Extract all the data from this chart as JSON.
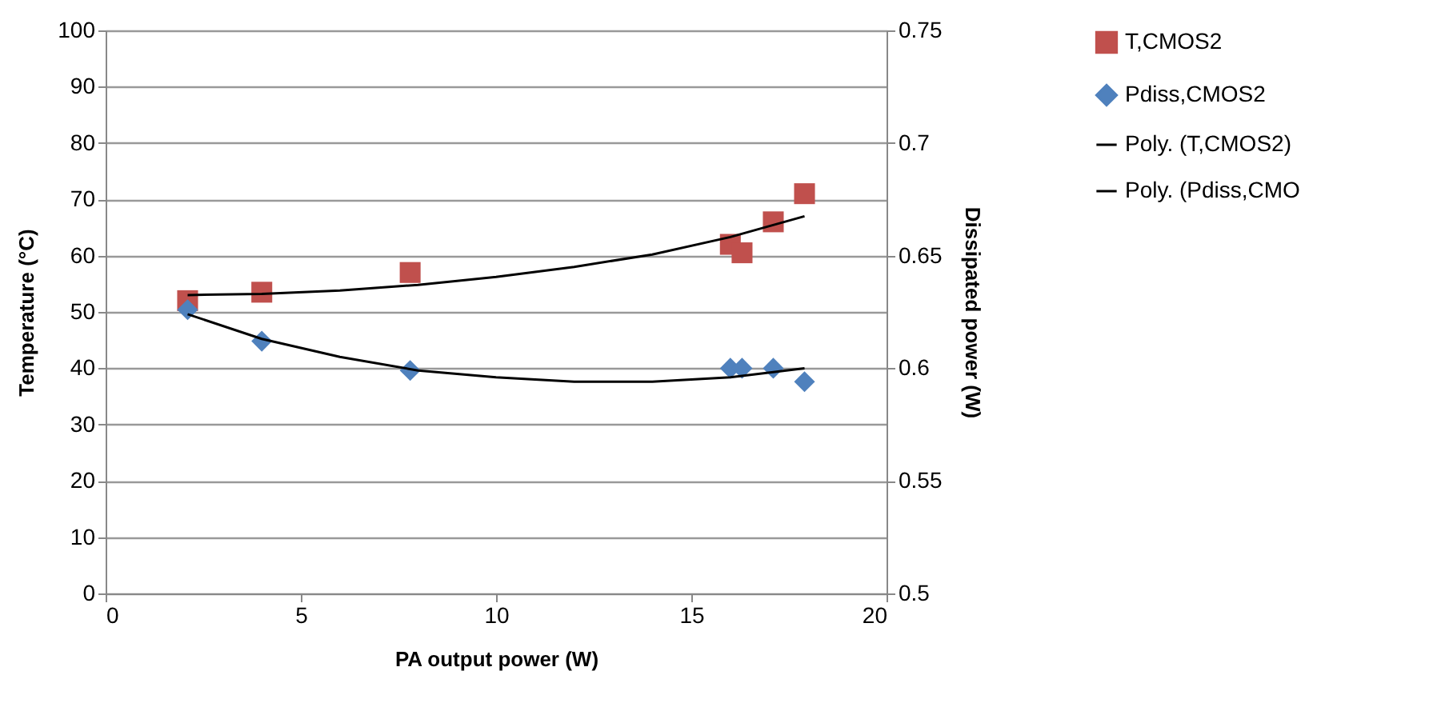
{
  "chart_data": {
    "type": "scatter",
    "xlabel": "PA output power (W)",
    "ylabel": "Temperature (°C)",
    "y2label": "Dissipated power (W)",
    "xlim": [
      0,
      20
    ],
    "xticks": [
      0,
      5,
      10,
      15,
      20
    ],
    "ylim": [
      0,
      100
    ],
    "yticks": [
      0,
      10,
      20,
      30,
      40,
      50,
      60,
      70,
      80,
      90,
      100
    ],
    "y2lim": [
      0.5,
      0.75
    ],
    "y2ticks": [
      0.5,
      0.55,
      0.6,
      0.65,
      0.7,
      0.75
    ],
    "grid": "y",
    "legend": "right",
    "series": [
      {
        "name": "T,CMOS2",
        "marker": "square",
        "color": "#c0504d",
        "x": [
          2.1,
          4,
          7.8,
          16,
          16.3,
          17.1,
          17.9
        ],
        "values": [
          52,
          53.5,
          57,
          62,
          60.5,
          66,
          71
        ]
      },
      {
        "name": "Pdiss,CMOS2",
        "marker": "diamond",
        "axis": "y2",
        "color": "#4f81bd",
        "x": [
          2.1,
          4,
          7.8,
          16,
          16.3,
          17.1,
          17.9
        ],
        "values": [
          0.626,
          0.612,
          0.599,
          0.6,
          0.6,
          0.6,
          0.594
        ]
      },
      {
        "name": "Poly. (T,CMOS2)",
        "type": "line",
        "line_style": "solid",
        "color": "#000000",
        "x": [
          2.1,
          4,
          6,
          8,
          10,
          12,
          14,
          16,
          17.9
        ],
        "values": [
          53,
          53.2,
          53.8,
          54.8,
          56.2,
          58,
          60.2,
          63.3,
          67
        ]
      },
      {
        "name": "Poly. (Pdiss,CMO",
        "type": "line",
        "line_style": "solid",
        "axis": "y2",
        "color": "#000000",
        "x": [
          2.1,
          4,
          6,
          8,
          10,
          12,
          14,
          16,
          17.9
        ],
        "values": [
          0.624,
          0.613,
          0.605,
          0.599,
          0.596,
          0.594,
          0.594,
          0.596,
          0.6
        ]
      }
    ]
  }
}
